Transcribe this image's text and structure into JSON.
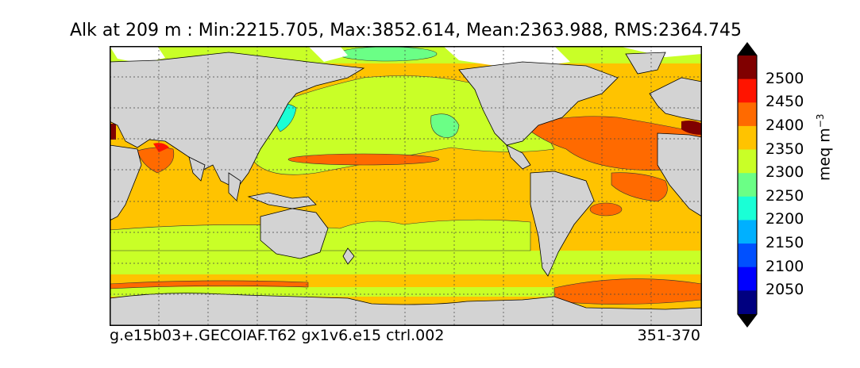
{
  "title": "Alk at 209 m : Min:2215.705, Max:3852.614, Mean:2363.988, RMS:2364.745",
  "footer": {
    "case": "g.e15b03+.GECOIAF.T62 gx1v6.e15 ctrl.002",
    "years": "351-370"
  },
  "colorbar": {
    "units_base": "meq m",
    "units_exp": "−3",
    "ticks": [
      "2500",
      "2450",
      "2400",
      "2350",
      "2300",
      "2250",
      "2200",
      "2150",
      "2100",
      "2050"
    ],
    "colors": [
      "#800000",
      "#ff1400",
      "#ff6a00",
      "#ffc300",
      "#c9ff27",
      "#6bff86",
      "#1affd6",
      "#00b0ff",
      "#0050ff",
      "#0000ff",
      "#000080"
    ],
    "land_color": "#d3d3d3",
    "missing_color": "#ffffff"
  },
  "chart_data": {
    "type": "heatmap",
    "variable": "Alk",
    "depth_m": 209,
    "stats": {
      "min": 2215.705,
      "max": 3852.614,
      "mean": 2363.988,
      "rms": 2364.745
    },
    "levels": [
      2050,
      2100,
      2150,
      2200,
      2250,
      2300,
      2350,
      2400,
      2450,
      2500
    ],
    "units": "meq m^-3",
    "grid": true
  }
}
